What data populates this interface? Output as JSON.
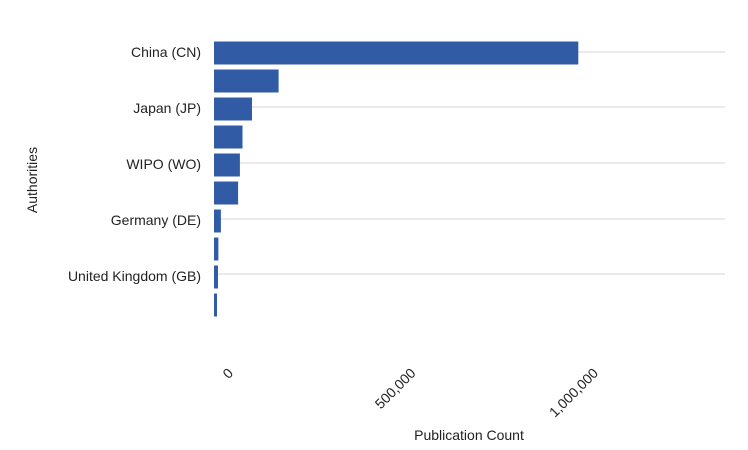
{
  "chart_data": {
    "type": "bar",
    "orientation": "horizontal",
    "xlabel": "Publication Count",
    "ylabel": "Authorities",
    "xlim": [
      0,
      1400000
    ],
    "xticks": [
      0,
      500000,
      1000000
    ],
    "xtick_labels": [
      "0",
      "500,000",
      "1,000,000"
    ],
    "categories": [
      "China (CN)",
      "",
      "Japan (JP)",
      "",
      "WIPO (WO)",
      "",
      "Germany (DE)",
      "",
      "United Kingdom (GB)",
      ""
    ],
    "values": [
      998000,
      177000,
      104000,
      78000,
      71000,
      66000,
      19000,
      12000,
      11000,
      6000
    ],
    "bar_color": "#315ca5",
    "grid": true,
    "legend": "none"
  }
}
